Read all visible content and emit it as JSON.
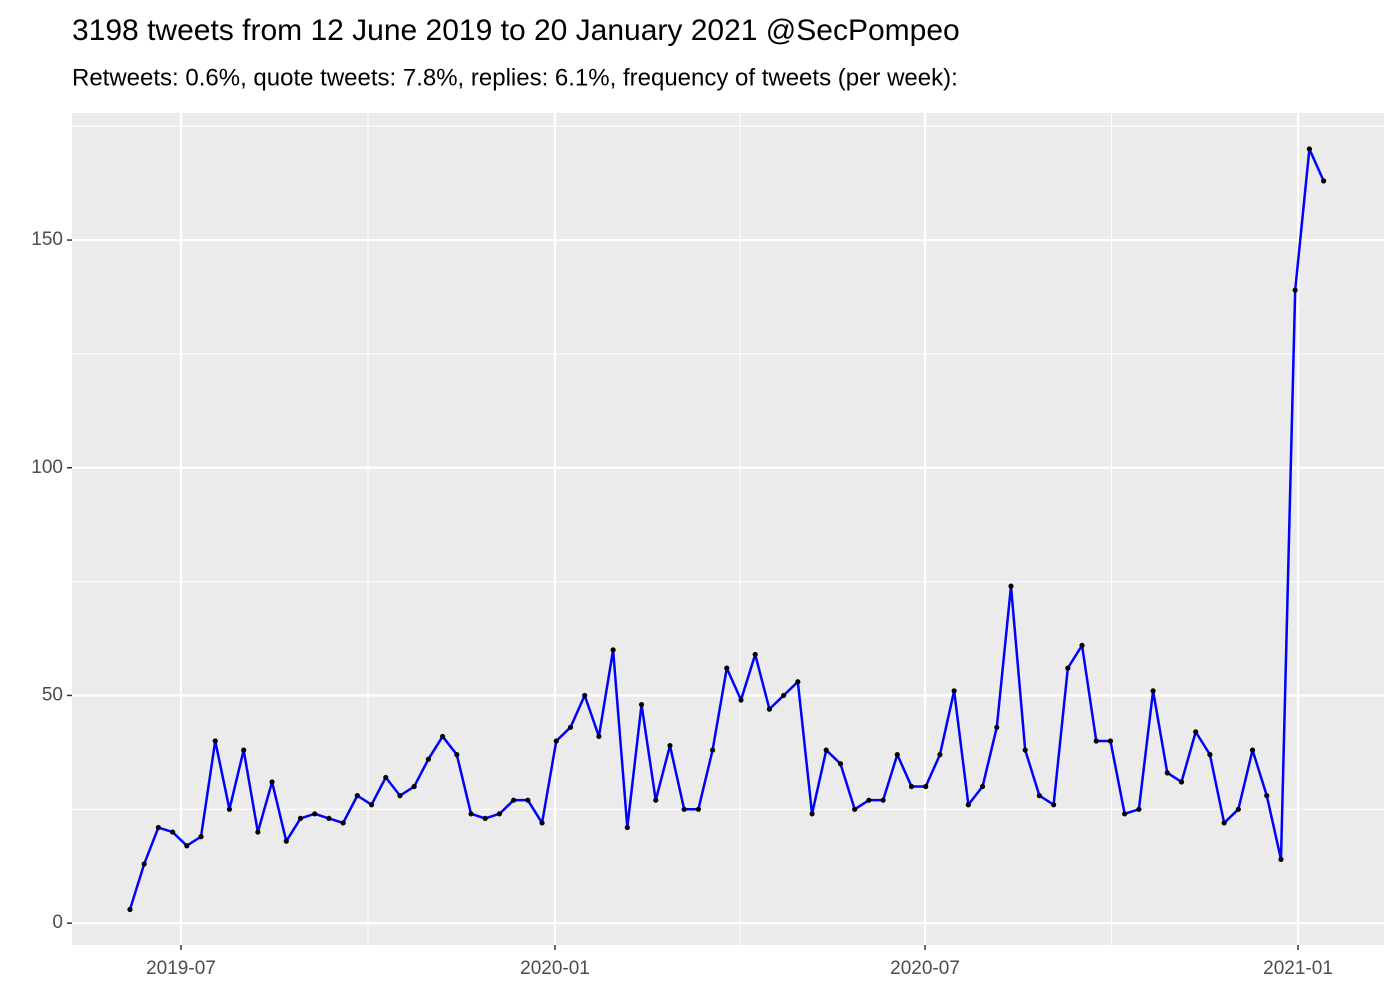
{
  "chart_data": {
    "type": "line",
    "title": "3198 tweets from 12 June 2019 to 20 January 2021 @SecPompeo",
    "subtitle": "Retweets: 0.6%, quote tweets: 7.8%, replies: 6.1%, frequency of tweets (per week):",
    "values": [
      3,
      13,
      21,
      20,
      17,
      19,
      40,
      25,
      38,
      20,
      31,
      18,
      23,
      24,
      23,
      22,
      28,
      26,
      32,
      28,
      30,
      36,
      41,
      37,
      24,
      23,
      24,
      27,
      27,
      22,
      40,
      43,
      50,
      41,
      60,
      21,
      48,
      27,
      39,
      25,
      25,
      38,
      56,
      49,
      59,
      47,
      50,
      53,
      24,
      38,
      35,
      25,
      27,
      27,
      37,
      30,
      30,
      37,
      51,
      26,
      30,
      43,
      74,
      38,
      28,
      26,
      56,
      61,
      40,
      40,
      24,
      25,
      51,
      33,
      31,
      42,
      37,
      22,
      25,
      38,
      28,
      14,
      139,
      170,
      163
    ],
    "color": "#0000ff",
    "point_color": "#000000",
    "ylim": [
      -4.8,
      177.9
    ],
    "yticks": [
      0,
      50,
      100,
      150
    ],
    "xlim": [
      -4.08,
      88.25
    ],
    "xticks": [
      {
        "value": 3.59,
        "label": "2019-07"
      },
      {
        "value": 29.91,
        "label": "2020-01"
      },
      {
        "value": 55.95,
        "label": "2020-07"
      },
      {
        "value": 82.2,
        "label": "2021-01"
      }
    ],
    "grid": true
  }
}
